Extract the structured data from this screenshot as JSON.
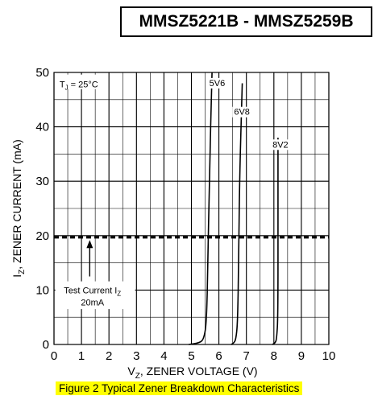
{
  "header": {
    "title": "MMSZ5221B - MMSZ5259B"
  },
  "caption": "Figure 2 Typical Zener Breakdown Characteristics",
  "colors": {
    "line": "#000000",
    "grid": "#000000",
    "caption_highlight": "#ffff00"
  },
  "chart_data": {
    "type": "line",
    "xlabel_parts": {
      "main": "V",
      "sub": "Z",
      "rest": ", ZENER VOLTAGE (V)"
    },
    "ylabel_parts": {
      "main": "I",
      "sub": "Z",
      "rest": ", ZENER CURRENT (mA)"
    },
    "xlim": [
      0,
      10
    ],
    "ylim": [
      0,
      50
    ],
    "x_ticks": [
      0,
      1,
      2,
      3,
      4,
      5,
      6,
      7,
      8,
      9,
      10
    ],
    "y_ticks": [
      0,
      10,
      20,
      30,
      40,
      50
    ],
    "x_tick_labels": [
      "0",
      "1",
      "2",
      "3",
      "4",
      "5",
      "6",
      "7",
      "8",
      "9",
      "10"
    ],
    "y_tick_labels": [
      "0",
      "10",
      "20",
      "30",
      "40",
      "50"
    ],
    "grid": true,
    "minor_x_step": 0.5,
    "minor_y_step": 5,
    "temperature_label": {
      "main": "T",
      "sub": "J",
      "rest": " = 25°C"
    },
    "series": [
      {
        "name": "5V6",
        "points": [
          [
            4.9,
            0
          ],
          [
            5.3,
            0.3
          ],
          [
            5.45,
            1
          ],
          [
            5.55,
            4
          ],
          [
            5.6,
            15
          ],
          [
            5.65,
            30
          ],
          [
            5.75,
            50
          ]
        ]
      },
      {
        "name": "6V8",
        "points": [
          [
            6.45,
            0
          ],
          [
            6.55,
            0.3
          ],
          [
            6.62,
            1
          ],
          [
            6.68,
            4
          ],
          [
            6.72,
            15
          ],
          [
            6.75,
            30
          ],
          [
            6.85,
            48
          ]
        ]
      },
      {
        "name": "8V2",
        "points": [
          [
            7.95,
            0
          ],
          [
            8.05,
            0.3
          ],
          [
            8.1,
            1
          ],
          [
            8.15,
            5
          ],
          [
            8.15,
            25
          ],
          [
            8.15,
            38
          ]
        ]
      }
    ],
    "series_label_pos": {
      "5V6": {
        "x": 5.65,
        "y": 47.5
      },
      "6V8": {
        "x": 6.55,
        "y": 42.2
      },
      "8V2": {
        "x": 7.95,
        "y": 36.2
      }
    },
    "reference_line": {
      "y": 19.7,
      "style": "dashed"
    },
    "annotation": {
      "main": "Test Current I",
      "sub": "Z",
      "line2": "20mA",
      "arrow_x": 1.3,
      "arrow_from_y": 12.5,
      "arrow_to_y": 19.2
    }
  }
}
